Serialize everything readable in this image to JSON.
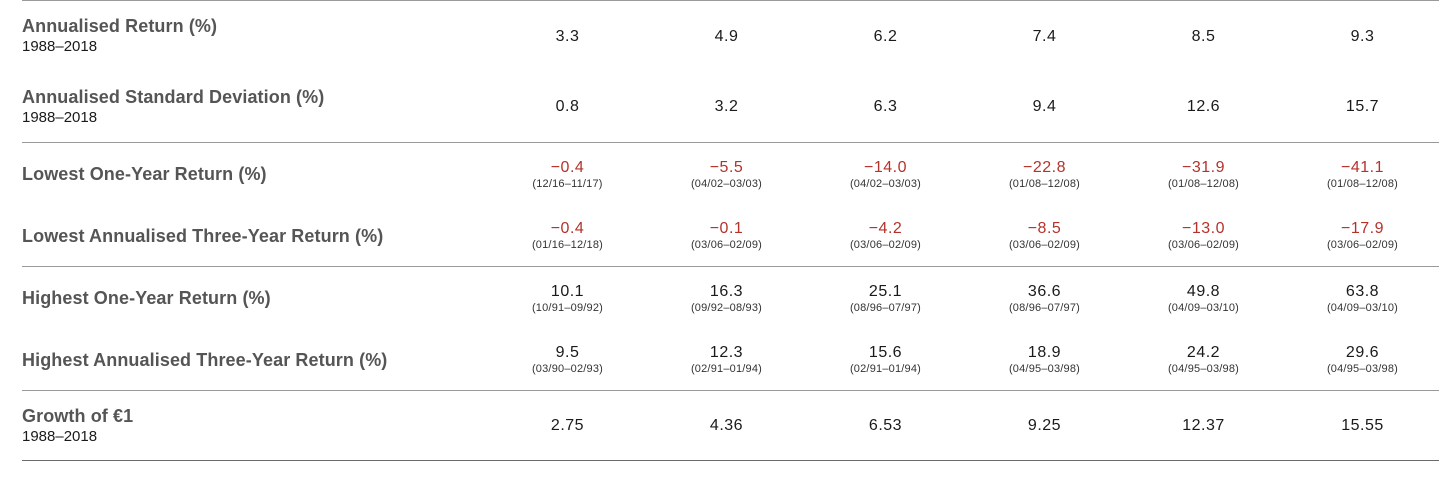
{
  "rows": [
    {
      "label": "Annualised Return (%)",
      "sub": "1988–2018",
      "values": [
        "3.3",
        "4.9",
        "6.2",
        "7.4",
        "8.5",
        "9.3"
      ]
    },
    {
      "label": "Annualised Standard Deviation (%)",
      "sub": "1988–2018",
      "values": [
        "0.8",
        "3.2",
        "6.3",
        "9.4",
        "12.6",
        "15.7"
      ]
    },
    {
      "label": "Lowest One-Year Return (%)",
      "values": [
        "−0.4",
        "−5.5",
        "−14.0",
        "−22.8",
        "−31.9",
        "−41.1"
      ],
      "periods": [
        "(12/16–11/17)",
        "(04/02–03/03)",
        "(04/02–03/03)",
        "(01/08–12/08)",
        "(01/08–12/08)",
        "(01/08–12/08)"
      ]
    },
    {
      "label": "Lowest Annualised Three-Year Return (%)",
      "values": [
        "−0.4",
        "−0.1",
        "−4.2",
        "−8.5",
        "−13.0",
        "−17.9"
      ],
      "periods": [
        "(01/16–12/18)",
        "(03/06–02/09)",
        "(03/06–02/09)",
        "(03/06–02/09)",
        "(03/06–02/09)",
        "(03/06–02/09)"
      ]
    },
    {
      "label": "Highest One-Year Return (%)",
      "values": [
        "10.1",
        "16.3",
        "25.1",
        "36.6",
        "49.8",
        "63.8"
      ],
      "periods": [
        "(10/91–09/92)",
        "(09/92–08/93)",
        "(08/96–07/97)",
        "(08/96–07/97)",
        "(04/09–03/10)",
        "(04/09–03/10)"
      ]
    },
    {
      "label": "Highest Annualised Three-Year Return (%)",
      "values": [
        "9.5",
        "12.3",
        "15.6",
        "18.9",
        "24.2",
        "29.6"
      ],
      "periods": [
        "(03/90–02/93)",
        "(02/91–01/94)",
        "(02/91–01/94)",
        "(04/95–03/98)",
        "(04/95–03/98)",
        "(04/95–03/98)"
      ]
    },
    {
      "label": "Growth of €1",
      "sub": "1988–2018",
      "values": [
        "2.75",
        "4.36",
        "6.53",
        "9.25",
        "12.37",
        "15.55"
      ]
    }
  ],
  "colors": {
    "negative": "#b5322a",
    "label": "#555555",
    "rule": "#9a9a9a"
  }
}
